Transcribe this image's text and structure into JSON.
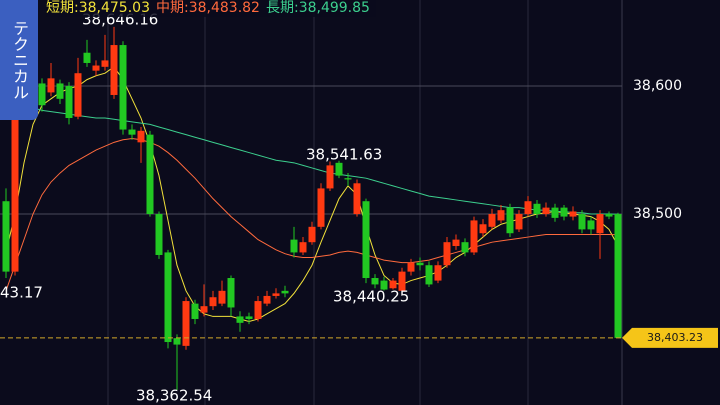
{
  "tab": "テクニカル",
  "chart_data": {
    "type": "candlestick",
    "up_color": "#ff3a12",
    "down_color": "#22c822",
    "open": [
      38510,
      38455,
      38588,
      38580,
      38602,
      38595,
      38602,
      38600,
      38576,
      38626,
      38612,
      38615,
      38593,
      38632,
      38566,
      38556,
      38562,
      38500,
      38470,
      38403,
      38397,
      38430,
      38423,
      38428,
      38430,
      38450,
      38420,
      38420,
      38418,
      38430,
      38436,
      38440,
      38480,
      38470,
      38478,
      38490,
      38520,
      38540,
      38528,
      38500,
      38510,
      38450,
      38448,
      38442,
      38440,
      38455,
      38462,
      38460,
      38448,
      38460,
      38475,
      38478,
      38470,
      38485,
      38490,
      38495,
      38505,
      38488,
      38500,
      38508,
      38500,
      38505,
      38505,
      38498,
      38500,
      38495,
      38485,
      38500,
      38500
    ],
    "close": [
      38455,
      38595,
      38598,
      38600,
      38585,
      38606,
      38590,
      38575,
      38610,
      38618,
      38616,
      38620,
      38632,
      38566,
      38562,
      38565,
      38500,
      38468,
      38400,
      38398,
      38432,
      38418,
      38428,
      38435,
      38440,
      38427,
      38415,
      38418,
      38432,
      38436,
      38438,
      38438,
      38470,
      38478,
      38490,
      38520,
      38538,
      38530,
      38527,
      38524,
      38450,
      38445,
      38441,
      38448,
      38455,
      38462,
      38460,
      38445,
      38460,
      38478,
      38480,
      38470,
      38495,
      38492,
      38500,
      38503,
      38485,
      38500,
      38510,
      38500,
      38505,
      38497,
      38498,
      38502,
      38488,
      38488,
      38500,
      38498,
      38403.23
    ],
    "high": [
      38520,
      38600,
      38605,
      38612,
      38606,
      38618,
      38605,
      38603,
      38622,
      38636,
      38620,
      38640,
      38646.16,
      38635,
      38570,
      38568,
      38565,
      38502,
      38472,
      38406,
      38435,
      38433,
      38445,
      38440,
      38448,
      38452,
      38424,
      38423,
      38436,
      38440,
      38442,
      38444,
      38490,
      38482,
      38494,
      38524,
      38541,
      38541.63,
      38532,
      38527,
      38512,
      38453,
      38451,
      38450,
      38458,
      38465,
      38466,
      38463,
      38463,
      38482,
      38484,
      38481,
      38498,
      38496,
      38504,
      38507,
      38508,
      38503,
      38514,
      38511,
      38509,
      38508,
      38507,
      38506,
      38503,
      38498,
      38503,
      38502,
      38501
    ],
    "low": [
      38450,
      38452,
      38585,
      38575,
      38580,
      38592,
      38586,
      38570,
      38574,
      38615,
      38608,
      38612,
      38590,
      38562,
      38558,
      38540,
      38498,
      38465,
      38395,
      38362.54,
      38394,
      38414,
      38420,
      38425,
      38428,
      38420,
      38408,
      38414,
      38416,
      38428,
      38434,
      38435,
      38466,
      38468,
      38476,
      38488,
      38518,
      38528,
      38522,
      38498,
      38446,
      38442,
      38440.25,
      38441,
      38438,
      38452,
      38456,
      38443,
      38446,
      38458,
      38472,
      38467,
      38468,
      38482,
      38488,
      38493,
      38482,
      38486,
      38498,
      38497,
      38498,
      38494,
      38495,
      38495,
      38485,
      38484,
      38465,
      38496,
      38403
    ],
    "last_label": "38,403.23",
    "legend_separator": ":",
    "series": [
      {
        "name": "短期",
        "color": "#f2e23a",
        "last_label": "38,475.03",
        "values": [
          38470,
          38500,
          38540,
          38570,
          38585,
          38590,
          38595,
          38598,
          38600,
          38605,
          38608,
          38610,
          38615,
          38605,
          38590,
          38575,
          38555,
          38530,
          38495,
          38460,
          38440,
          38428,
          38422,
          38420,
          38420,
          38420,
          38418,
          38416,
          38418,
          38422,
          38426,
          38430,
          38438,
          38448,
          38460,
          38478,
          38495,
          38512,
          38522,
          38515,
          38490,
          38468,
          38452,
          38446,
          38445,
          38448,
          38450,
          38452,
          38455,
          38460,
          38466,
          38470,
          38476,
          38482,
          38488,
          38492,
          38494,
          38496,
          38498,
          38500,
          38501,
          38502,
          38501,
          38500,
          38499,
          38498,
          38494,
          38488,
          38475.03
        ]
      },
      {
        "name": "中期",
        "color": "#ff6a3d",
        "last_label": "38,483.82",
        "values": [
          38440,
          38460,
          38480,
          38500,
          38515,
          38525,
          38532,
          38538,
          38542,
          38546,
          38550,
          38553,
          38556,
          38558,
          38559,
          38558,
          38556,
          38553,
          38548,
          38542,
          38535,
          38528,
          38520,
          38512,
          38505,
          38498,
          38492,
          38486,
          38480,
          38476,
          38472,
          38469,
          38467,
          38466,
          38466,
          38467,
          38468,
          38470,
          38471,
          38470,
          38468,
          38466,
          38464,
          38463,
          38462,
          38462,
          38463,
          38464,
          38466,
          38468,
          38470,
          38472,
          38474,
          38476,
          38478,
          38479,
          38480,
          38481,
          38482,
          38483,
          38484,
          38484,
          38484,
          38484,
          38484,
          38484,
          38484,
          38484,
          38483.82
        ]
      },
      {
        "name": "長期",
        "color": "#3ccf8e",
        "last_label": "38,499.85",
        "values": [
          38590,
          38588,
          38585,
          38583,
          38581,
          38580,
          38579,
          38578,
          38577,
          38576,
          38575,
          38575,
          38574,
          38573,
          38572,
          38571,
          38570,
          38568,
          38566,
          38564,
          38562,
          38560,
          38558,
          38556,
          38554,
          38552,
          38550,
          38548,
          38546,
          38544,
          38542,
          38541,
          38540,
          38538,
          38536,
          38534,
          38532,
          38531,
          38530,
          38529,
          38528,
          38526,
          38524,
          38522,
          38520,
          38518,
          38516,
          38514,
          38513,
          38512,
          38511,
          38510,
          38509,
          38508,
          38507,
          38506,
          38505,
          38505,
          38504,
          38503,
          38503,
          38502,
          38502,
          38501,
          38501,
          38500,
          38500,
          38500,
          38499.85
        ]
      }
    ],
    "annotations": [
      "38,646.16",
      "38,541.63",
      "43.17",
      "38,440.25",
      "38,362.54"
    ],
    "ylim": [
      38350.8,
      38667.2
    ],
    "yticks": [
      {
        "value": 38500,
        "label": "38,500"
      },
      {
        "value": 38600,
        "label": "38,600"
      }
    ],
    "grid": true
  }
}
